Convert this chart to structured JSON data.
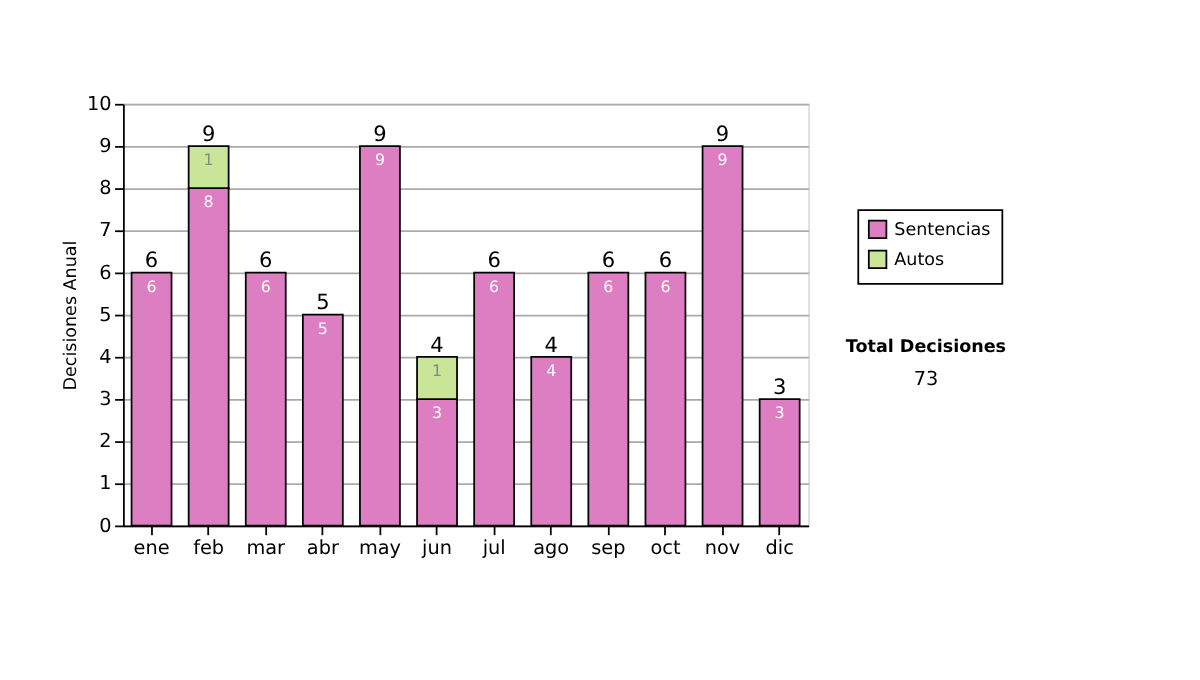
{
  "chart_data": {
    "type": "bar",
    "stacked": true,
    "ylabel": "Decisiones Anual",
    "categories": [
      "ene",
      "feb",
      "mar",
      "abr",
      "may",
      "jun",
      "jul",
      "ago",
      "sep",
      "oct",
      "nov",
      "dic"
    ],
    "series": [
      {
        "name": "Sentencias",
        "color": "#dd7ec3",
        "values": [
          6,
          8,
          6,
          5,
          9,
          3,
          6,
          4,
          6,
          6,
          9,
          3
        ]
      },
      {
        "name": "Autos",
        "color": "#c9e597",
        "values": [
          null,
          1,
          null,
          null,
          null,
          1,
          null,
          null,
          null,
          null,
          null,
          null
        ]
      }
    ],
    "totals": [
      "6",
      "9",
      "6",
      "5",
      "9",
      "4",
      "6",
      "4",
      "6",
      "6",
      "9",
      "3"
    ],
    "data_labels": true,
    "ylim": [
      0,
      10
    ],
    "yticks": [
      0,
      1,
      2,
      3,
      4,
      5,
      6,
      7,
      8,
      9,
      10
    ],
    "grid": "y",
    "legend": "right",
    "annotations": [
      "Total Decisiones",
      "73"
    ]
  }
}
